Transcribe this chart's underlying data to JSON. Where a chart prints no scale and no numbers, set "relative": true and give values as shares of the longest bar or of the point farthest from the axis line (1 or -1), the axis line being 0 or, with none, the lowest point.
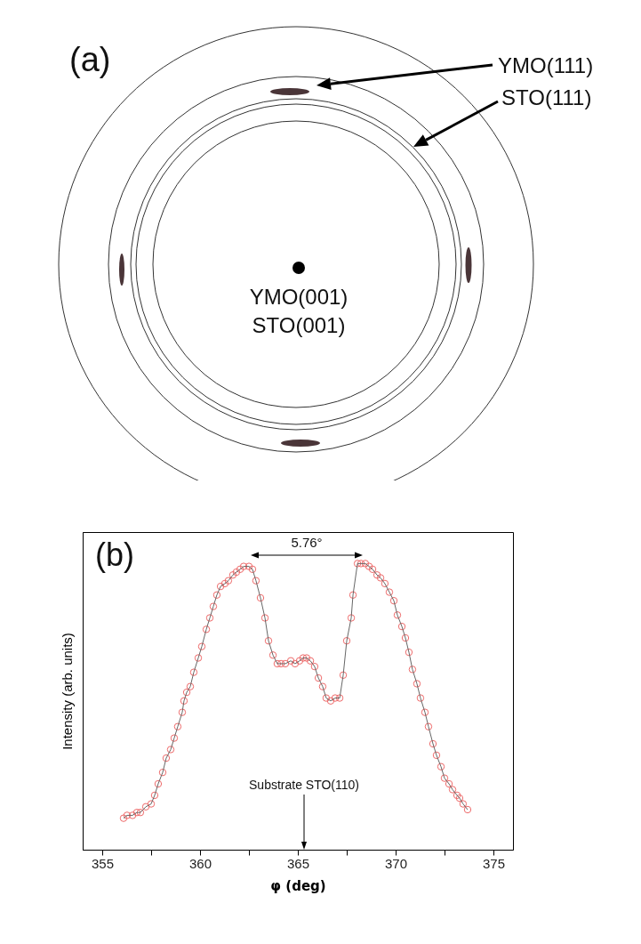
{
  "chart_data": [
    {
      "type": "other",
      "title": "(a)",
      "annotations": [
        "YMO(111)",
        "STO(111)",
        "YMO(001)",
        "STO(001)"
      ]
    },
    {
      "type": "line",
      "title": "(b)",
      "xlabel": "φ (deg)",
      "ylabel": "Intensity (arb. units)",
      "relative": true,
      "marker": "circle",
      "line_style": "solid",
      "xlim": [
        354,
        376
      ],
      "xticks": [
        355,
        {
          "value": 357.5,
          "label": null
        },
        360,
        {
          "value": 362.5,
          "label": null
        },
        365,
        {
          "value": 367.5,
          "label": null
        },
        370,
        {
          "value": 372.5,
          "label": null
        },
        375
      ],
      "annotations": [
        "5.76°",
        "Substrate STO(110)"
      ],
      "x": [
        356.09,
        356.27,
        356.55,
        356.77,
        356.95,
        357.23,
        357.5,
        357.68,
        357.86,
        358.09,
        358.27,
        358.5,
        358.68,
        358.86,
        359.09,
        359.18,
        359.32,
        359.5,
        359.68,
        359.91,
        360.09,
        360.32,
        360.5,
        360.68,
        360.86,
        361.05,
        361.27,
        361.45,
        361.68,
        361.86,
        362.05,
        362.23,
        362.5,
        362.68,
        362.86,
        363.09,
        363.32,
        363.5,
        363.73,
        363.95,
        364.14,
        364.36,
        364.64,
        364.86,
        365.09,
        365.27,
        365.45,
        365.64,
        365.86,
        366.05,
        366.27,
        366.45,
        366.68,
        366.91,
        367.14,
        367.32,
        367.5,
        367.73,
        367.82,
        368.05,
        368.23,
        368.45,
        368.64,
        368.82,
        369.05,
        369.23,
        369.45,
        369.68,
        369.91,
        370.09,
        370.32,
        370.5,
        370.68,
        370.86,
        371.09,
        371.27,
        371.5,
        371.68,
        371.91,
        372.09,
        372.32,
        372.5,
        372.73,
        372.91,
        373.14,
        373.27,
        373.45,
        373.68
      ],
      "series": [
        {
          "color": "#ee6b6b",
          "values": [
            0.11,
            0.12,
            0.12,
            0.13,
            0.13,
            0.15,
            0.16,
            0.19,
            0.23,
            0.27,
            0.32,
            0.35,
            0.39,
            0.43,
            0.48,
            0.52,
            0.55,
            0.57,
            0.62,
            0.67,
            0.71,
            0.77,
            0.81,
            0.85,
            0.89,
            0.92,
            0.93,
            0.94,
            0.96,
            0.97,
            0.98,
            0.99,
            0.99,
            0.98,
            0.94,
            0.88,
            0.81,
            0.73,
            0.68,
            0.65,
            0.65,
            0.65,
            0.66,
            0.65,
            0.66,
            0.67,
            0.67,
            0.66,
            0.64,
            0.6,
            0.57,
            0.53,
            0.52,
            0.53,
            0.53,
            0.61,
            0.73,
            0.81,
            0.89,
            1.0,
            1.0,
            1.0,
            0.99,
            0.98,
            0.96,
            0.95,
            0.93,
            0.9,
            0.87,
            0.82,
            0.78,
            0.74,
            0.69,
            0.63,
            0.58,
            0.53,
            0.48,
            0.43,
            0.37,
            0.33,
            0.29,
            0.25,
            0.23,
            0.21,
            0.19,
            0.18,
            0.16,
            0.14
          ]
        }
      ]
    }
  ]
}
